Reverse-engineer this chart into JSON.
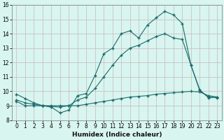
{
  "xlabel": "Humidex (Indice chaleur)",
  "bg_color": "#d8f5f0",
  "plot_bg_color": "#d8f5f0",
  "grid_color": "#c8b8b8",
  "line_color": "#1a6b6b",
  "xlim": [
    -0.5,
    23.5
  ],
  "ylim": [
    8,
    16
  ],
  "xticks": [
    0,
    1,
    2,
    3,
    4,
    5,
    6,
    7,
    8,
    9,
    10,
    11,
    12,
    13,
    14,
    15,
    16,
    17,
    18,
    19,
    20,
    21,
    22,
    23
  ],
  "yticks": [
    8,
    9,
    10,
    11,
    12,
    13,
    14,
    15,
    16
  ],
  "line1_x": [
    0,
    1,
    2,
    3,
    4,
    5,
    6,
    7,
    8,
    9,
    10,
    11,
    12,
    13,
    14,
    15,
    16,
    17,
    18,
    19,
    20,
    21,
    22,
    23
  ],
  "line1_y": [
    9.8,
    9.5,
    9.2,
    9.0,
    8.9,
    8.5,
    8.7,
    9.7,
    9.85,
    11.1,
    12.6,
    13.0,
    14.0,
    14.2,
    13.7,
    14.6,
    15.1,
    15.55,
    15.3,
    14.7,
    11.8,
    10.1,
    9.55,
    9.6
  ],
  "line2_x": [
    0,
    1,
    2,
    3,
    4,
    5,
    6,
    7,
    8,
    9,
    10,
    11,
    12,
    13,
    14,
    15,
    16,
    17,
    18,
    19,
    20,
    21,
    22,
    23
  ],
  "line2_y": [
    9.3,
    9.0,
    9.0,
    9.0,
    9.0,
    9.0,
    9.0,
    9.0,
    9.1,
    9.2,
    9.3,
    9.4,
    9.5,
    9.6,
    9.65,
    9.7,
    9.8,
    9.85,
    9.9,
    9.95,
    10.0,
    9.95,
    9.7,
    9.6
  ],
  "line3_x": [
    0,
    1,
    2,
    3,
    4,
    5,
    6,
    7,
    8,
    9,
    10,
    11,
    12,
    13,
    14,
    15,
    16,
    17,
    18,
    19,
    20,
    21,
    22,
    23
  ],
  "line3_y": [
    9.4,
    9.2,
    9.1,
    9.0,
    8.95,
    8.9,
    9.0,
    9.4,
    9.6,
    10.2,
    11.0,
    11.8,
    12.5,
    13.0,
    13.2,
    13.5,
    13.8,
    14.0,
    13.7,
    13.6,
    11.8,
    10.05,
    9.6,
    9.55
  ],
  "xlabel_fontsize": 6.5,
  "tick_fontsize": 5.5
}
